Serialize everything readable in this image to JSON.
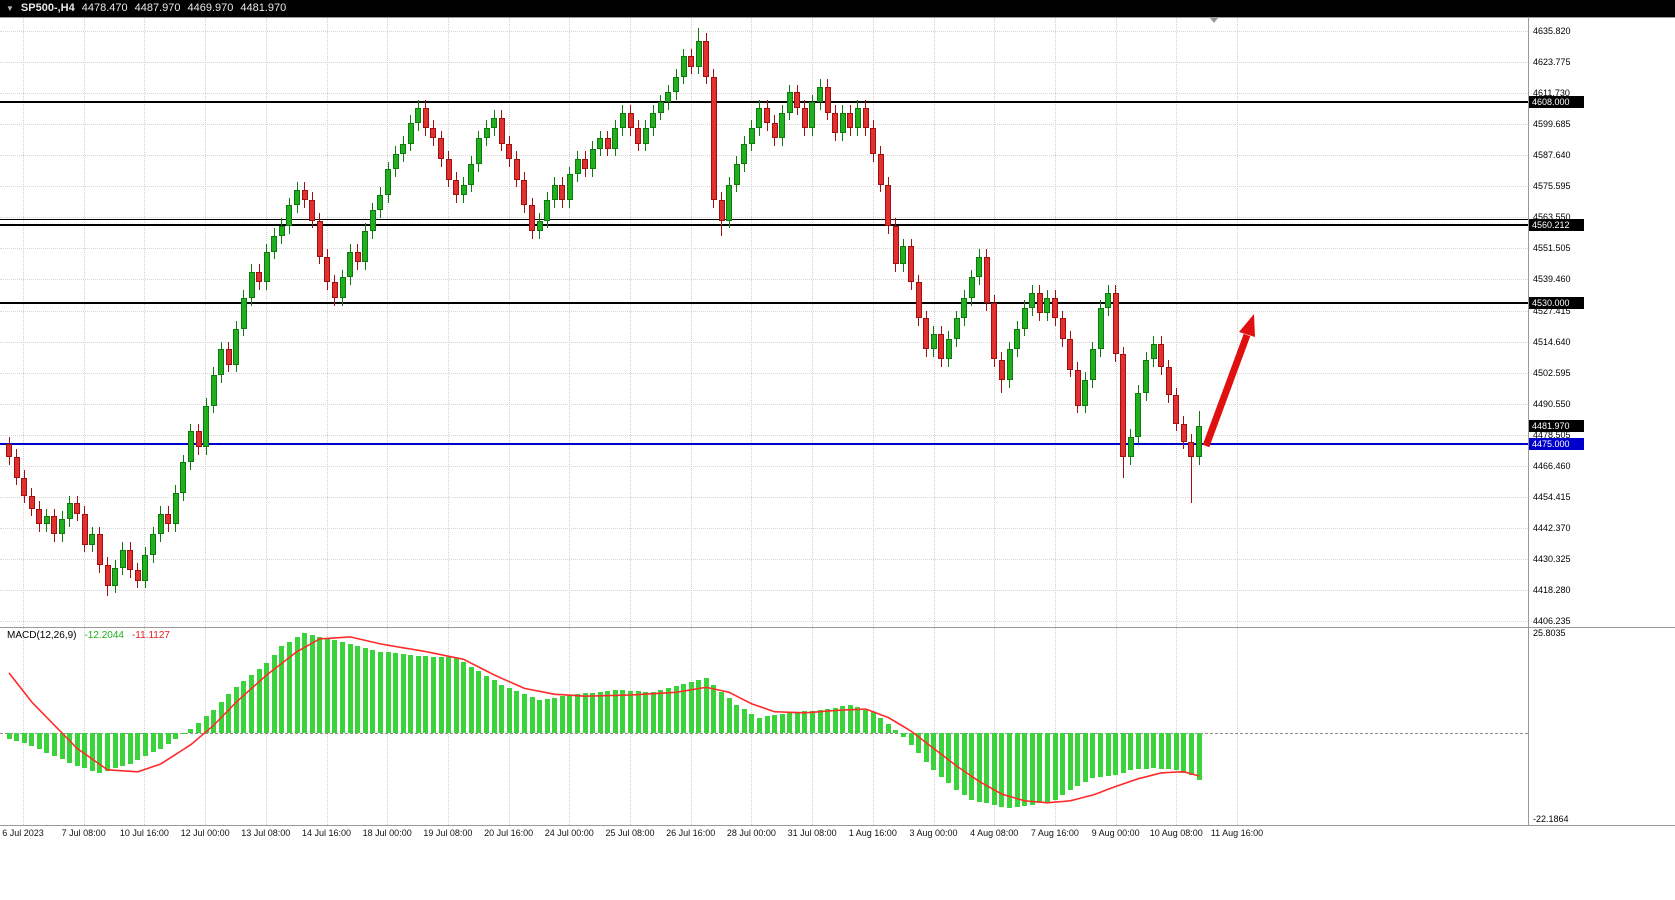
{
  "title_bar": {
    "dropdown_icon": "▼",
    "symbol_period": "SP500-,H4",
    "open": "4478.470",
    "high": "4487.970",
    "low": "4469.970",
    "close": "4481.970"
  },
  "macd_panel": {
    "label": "MACD(12,26,9)",
    "macd_value": "-12.2044",
    "signal_value": "-11.1127",
    "scale_top": "25.8035",
    "scale_bottom": "-22.1864"
  },
  "colors": {
    "up_body": "#1FAF1F",
    "up_border": "#0E7A0E",
    "down_body": "#E03030",
    "down_border": "#A01010",
    "histogram": "#3BD33B",
    "signal_line": "#FF2A2A",
    "level_line": "#000000",
    "support_line": "#0000CC",
    "arrow": "#E01010",
    "tag_bg": "#000000",
    "tag_blue_bg": "#0000CC"
  },
  "annotation": {
    "type": "up-trend-arrow",
    "color": "#E01010"
  },
  "chart_data": {
    "type": "candlestick",
    "title": "SP500-,H4",
    "symbol": "SP500-",
    "timeframe": "H4",
    "current_bar": {
      "open": 4478.47,
      "high": 4487.97,
      "low": 4469.97,
      "close": 4481.97
    },
    "ylim": [
      4404.5,
      4641.0
    ],
    "grid": true,
    "y_axis_labels": [
      "4635.820",
      "4623.775",
      "4611.730",
      "4599.685",
      "4587.640",
      "4575.595",
      "4563.550",
      "4551.505",
      "4539.460",
      "4527.415",
      "4514.640",
      "4502.595",
      "4490.550",
      "4478.505",
      "4466.460",
      "4454.415",
      "4442.370",
      "4430.325",
      "4418.280",
      "4406.235"
    ],
    "x_labels": [
      "6 Jul 2023",
      "7 Jul 08:00",
      "10 Jul 16:00",
      "12 Jul 00:00",
      "13 Jul 08:00",
      "14 Jul 16:00",
      "18 Jul 00:00",
      "19 Jul 08:00",
      "20 Jul 16:00",
      "24 Jul 00:00",
      "25 Jul 08:00",
      "26 Jul 16:00",
      "28 Jul 00:00",
      "31 Jul 08:00",
      "1 Aug 16:00",
      "3 Aug 00:00",
      "4 Aug 08:00",
      "7 Aug 16:00",
      "9 Aug 00:00",
      "10 Aug 08:00",
      "11 Aug 16:00"
    ],
    "levels": [
      {
        "label": "4608.000",
        "price": 4608.0,
        "color": "#000000",
        "thickness": 2,
        "tag": true
      },
      {
        "label": "",
        "price": 4562.5,
        "color": "#000000",
        "thickness": 1,
        "tag": false
      },
      {
        "label": "4560.212",
        "price": 4560.212,
        "color": "#000000",
        "thickness": 2,
        "tag": true
      },
      {
        "label": "4530.000",
        "price": 4530.0,
        "color": "#000000",
        "thickness": 2,
        "tag": true
      },
      {
        "label": "4475.000",
        "price": 4475.0,
        "color": "#0000CC",
        "thickness": 2,
        "tag": true
      }
    ],
    "current_price_tag": {
      "label": "4481.970",
      "price": 4481.97,
      "bg": "#000000"
    },
    "candles": [
      [
        4475,
        4478,
        4467,
        4470
      ],
      [
        4470,
        4473,
        4459,
        4462
      ],
      [
        4462,
        4465,
        4452,
        4455
      ],
      [
        4455,
        4458,
        4447,
        4450
      ],
      [
        4450,
        4453,
        4441,
        4444
      ],
      [
        4444,
        4450,
        4441,
        4447
      ],
      [
        4447,
        4450,
        4437,
        4440
      ],
      [
        4440,
        4449,
        4437,
        4446
      ],
      [
        4446,
        4455,
        4443,
        4452
      ],
      [
        4452,
        4455,
        4445,
        4448
      ],
      [
        4448,
        4451,
        4433,
        4436
      ],
      [
        4436,
        4443,
        4433,
        4440
      ],
      [
        4440,
        4443,
        4425,
        4428
      ],
      [
        4428,
        4431,
        4416,
        4420
      ],
      [
        4420,
        4430,
        4417,
        4427
      ],
      [
        4427,
        4437,
        4424,
        4434
      ],
      [
        4434,
        4437,
        4423,
        4426
      ],
      [
        4426,
        4429,
        4419,
        4422
      ],
      [
        4422,
        4435,
        4419,
        4432
      ],
      [
        4432,
        4443,
        4429,
        4440
      ],
      [
        4440,
        4451,
        4437,
        4448
      ],
      [
        4448,
        4451,
        4441,
        4444
      ],
      [
        4444,
        4459,
        4441,
        4456
      ],
      [
        4456,
        4471,
        4453,
        4468
      ],
      [
        4468,
        4483,
        4465,
        4480
      ],
      [
        4480,
        4483,
        4471,
        4474
      ],
      [
        4474,
        4493,
        4471,
        4490
      ],
      [
        4490,
        4505,
        4487,
        4502
      ],
      [
        4502,
        4515,
        4499,
        4512
      ],
      [
        4512,
        4515,
        4503,
        4506
      ],
      [
        4506,
        4523,
        4503,
        4520
      ],
      [
        4520,
        4535,
        4517,
        4532
      ],
      [
        4532,
        4545,
        4529,
        4542
      ],
      [
        4542,
        4545,
        4535,
        4538
      ],
      [
        4538,
        4553,
        4535,
        4550
      ],
      [
        4550,
        4559,
        4547,
        4556
      ],
      [
        4556,
        4563,
        4553,
        4560
      ],
      [
        4560,
        4571,
        4557,
        4568
      ],
      [
        4568,
        4577,
        4565,
        4574
      ],
      [
        4574,
        4577,
        4567,
        4570
      ],
      [
        4570,
        4573,
        4559,
        4562
      ],
      [
        4562,
        4565,
        4545,
        4548
      ],
      [
        4548,
        4551,
        4535,
        4538
      ],
      [
        4538,
        4541,
        4529,
        4532
      ],
      [
        4532,
        4543,
        4529,
        4540
      ],
      [
        4540,
        4553,
        4537,
        4550
      ],
      [
        4550,
        4553,
        4543,
        4546
      ],
      [
        4546,
        4561,
        4543,
        4558
      ],
      [
        4558,
        4569,
        4555,
        4566
      ],
      [
        4566,
        4575,
        4563,
        4572
      ],
      [
        4572,
        4585,
        4569,
        4582
      ],
      [
        4582,
        4591,
        4579,
        4588
      ],
      [
        4588,
        4595,
        4585,
        4592
      ],
      [
        4592,
        4603,
        4589,
        4600
      ],
      [
        4600,
        4609,
        4597,
        4606
      ],
      [
        4606,
        4609,
        4595,
        4598
      ],
      [
        4598,
        4601,
        4591,
        4594
      ],
      [
        4594,
        4597,
        4583,
        4586
      ],
      [
        4586,
        4589,
        4575,
        4578
      ],
      [
        4578,
        4581,
        4569,
        4572
      ],
      [
        4572,
        4579,
        4569,
        4576
      ],
      [
        4576,
        4587,
        4573,
        4584
      ],
      [
        4584,
        4597,
        4581,
        4594
      ],
      [
        4594,
        4601,
        4591,
        4598
      ],
      [
        4598,
        4605,
        4595,
        4602
      ],
      [
        4602,
        4605,
        4589,
        4592
      ],
      [
        4592,
        4595,
        4583,
        4586
      ],
      [
        4586,
        4589,
        4575,
        4578
      ],
      [
        4578,
        4581,
        4565,
        4568
      ],
      [
        4568,
        4571,
        4555,
        4558
      ],
      [
        4558,
        4565,
        4555,
        4562
      ],
      [
        4562,
        4573,
        4559,
        4570
      ],
      [
        4570,
        4579,
        4567,
        4576
      ],
      [
        4576,
        4579,
        4567,
        4570
      ],
      [
        4570,
        4583,
        4567,
        4580
      ],
      [
        4580,
        4589,
        4577,
        4586
      ],
      [
        4586,
        4589,
        4579,
        4582
      ],
      [
        4582,
        4593,
        4579,
        4590
      ],
      [
        4590,
        4597,
        4587,
        4594
      ],
      [
        4594,
        4597,
        4587,
        4590
      ],
      [
        4590,
        4601,
        4587,
        4598
      ],
      [
        4598,
        4607,
        4595,
        4604
      ],
      [
        4604,
        4607,
        4595,
        4598
      ],
      [
        4598,
        4601,
        4589,
        4592
      ],
      [
        4592,
        4601,
        4589,
        4598
      ],
      [
        4598,
        4607,
        4595,
        4604
      ],
      [
        4604,
        4611,
        4601,
        4608
      ],
      [
        4608,
        4615,
        4605,
        4612
      ],
      [
        4612,
        4621,
        4609,
        4618
      ],
      [
        4618,
        4629,
        4615,
        4626
      ],
      [
        4626,
        4629,
        4619,
        4622
      ],
      [
        4622,
        4637,
        4619,
        4632
      ],
      [
        4632,
        4635,
        4615,
        4618
      ],
      [
        4618,
        4621,
        4567,
        4570
      ],
      [
        4570,
        4573,
        4556,
        4562
      ],
      [
        4562,
        4579,
        4559,
        4576
      ],
      [
        4576,
        4587,
        4573,
        4584
      ],
      [
        4584,
        4595,
        4581,
        4592
      ],
      [
        4592,
        4601,
        4589,
        4598
      ],
      [
        4598,
        4609,
        4595,
        4606
      ],
      [
        4606,
        4609,
        4597,
        4600
      ],
      [
        4600,
        4603,
        4591,
        4594
      ],
      [
        4594,
        4607,
        4591,
        4604
      ],
      [
        4604,
        4615,
        4601,
        4612
      ],
      [
        4612,
        4615,
        4603,
        4606
      ],
      [
        4606,
        4609,
        4595,
        4598
      ],
      [
        4598,
        4611,
        4595,
        4608
      ],
      [
        4608,
        4617,
        4605,
        4614
      ],
      [
        4614,
        4617,
        4601,
        4604
      ],
      [
        4604,
        4607,
        4593,
        4596
      ],
      [
        4596,
        4607,
        4593,
        4604
      ],
      [
        4604,
        4607,
        4595,
        4598
      ],
      [
        4598,
        4609,
        4595,
        4606
      ],
      [
        4606,
        4609,
        4595,
        4598
      ],
      [
        4598,
        4601,
        4585,
        4588
      ],
      [
        4588,
        4591,
        4573,
        4576
      ],
      [
        4576,
        4579,
        4557,
        4560
      ],
      [
        4560,
        4563,
        4542,
        4545
      ],
      [
        4545,
        4555,
        4542,
        4552
      ],
      [
        4552,
        4555,
        4535,
        4538
      ],
      [
        4538,
        4541,
        4521,
        4524
      ],
      [
        4524,
        4527,
        4509,
        4512
      ],
      [
        4512,
        4521,
        4509,
        4518
      ],
      [
        4518,
        4521,
        4505,
        4508
      ],
      [
        4508,
        4519,
        4505,
        4516
      ],
      [
        4516,
        4527,
        4513,
        4524
      ],
      [
        4524,
        4535,
        4521,
        4532
      ],
      [
        4532,
        4543,
        4529,
        4540
      ],
      [
        4540,
        4551,
        4537,
        4548
      ],
      [
        4548,
        4551,
        4527,
        4530
      ],
      [
        4530,
        4533,
        4505,
        4508
      ],
      [
        4508,
        4511,
        4495,
        4500
      ],
      [
        4500,
        4515,
        4497,
        4512
      ],
      [
        4512,
        4523,
        4509,
        4520
      ],
      [
        4520,
        4531,
        4517,
        4528
      ],
      [
        4528,
        4537,
        4525,
        4534
      ],
      [
        4534,
        4537,
        4523,
        4526
      ],
      [
        4526,
        4535,
        4523,
        4532
      ],
      [
        4532,
        4535,
        4521,
        4524
      ],
      [
        4524,
        4527,
        4513,
        4516
      ],
      [
        4516,
        4519,
        4501,
        4504
      ],
      [
        4504,
        4507,
        4487,
        4490
      ],
      [
        4490,
        4503,
        4487,
        4500
      ],
      [
        4500,
        4515,
        4497,
        4512
      ],
      [
        4512,
        4531,
        4509,
        4528
      ],
      [
        4528,
        4537,
        4525,
        4534
      ],
      [
        4534,
        4537,
        4507,
        4510
      ],
      [
        4510,
        4513,
        4462,
        4470
      ],
      [
        4470,
        4481,
        4467,
        4478
      ],
      [
        4478,
        4498,
        4475,
        4495
      ],
      [
        4495,
        4511,
        4492,
        4508
      ],
      [
        4508,
        4517,
        4505,
        4514
      ],
      [
        4514,
        4517,
        4502,
        4505
      ],
      [
        4505,
        4508,
        4491,
        4494
      ],
      [
        4494,
        4497,
        4480,
        4483
      ],
      [
        4483,
        4486,
        4473,
        4476
      ],
      [
        4476,
        4479,
        4452,
        4470
      ],
      [
        4470,
        4488,
        4467,
        4481.97
      ]
    ],
    "indicator": {
      "name": "MACD(12,26,9)",
      "last_macd": -12.2044,
      "last_signal": -11.1127,
      "scale": [
        -22.1864,
        25.8035
      ],
      "histogram_keyframes": [
        [
          0,
          -1.5
        ],
        [
          2,
          -2.5
        ],
        [
          6,
          -6
        ],
        [
          9,
          -8.5
        ],
        [
          12,
          -10.3
        ],
        [
          16,
          -8
        ],
        [
          20,
          -4
        ],
        [
          24,
          1
        ],
        [
          27,
          6
        ],
        [
          30,
          12
        ],
        [
          34,
          18
        ],
        [
          36,
          22.5
        ],
        [
          39,
          25.8
        ],
        [
          44,
          23.5
        ],
        [
          49,
          21
        ],
        [
          55,
          19.8
        ],
        [
          59,
          19.4
        ],
        [
          65,
          12.4
        ],
        [
          70,
          8.5
        ],
        [
          74,
          9.8
        ],
        [
          80,
          11.1
        ],
        [
          85,
          10.6
        ],
        [
          90,
          13.2
        ],
        [
          92,
          14.2
        ],
        [
          96,
          7.2
        ],
        [
          99,
          3.9
        ],
        [
          103,
          5.4
        ],
        [
          107,
          5.9
        ],
        [
          111,
          7.2
        ],
        [
          114,
          5.4
        ],
        [
          117,
          0.8
        ],
        [
          119,
          -3.1
        ],
        [
          122,
          -9.6
        ],
        [
          125,
          -14.7
        ],
        [
          127,
          -17.3
        ],
        [
          130,
          -18.6
        ],
        [
          132,
          -19.4
        ],
        [
          135,
          -18.6
        ],
        [
          138,
          -17.3
        ],
        [
          140,
          -14.7
        ],
        [
          143,
          -11.6
        ],
        [
          146,
          -10.9
        ],
        [
          148,
          -9.6
        ],
        [
          151,
          -9.0
        ],
        [
          154,
          -9.6
        ],
        [
          156,
          -10.9
        ],
        [
          157,
          -12.2
        ]
      ],
      "signal_keyframes": [
        [
          0,
          15.5
        ],
        [
          3,
          8
        ],
        [
          6,
          2
        ],
        [
          9,
          -4
        ],
        [
          13,
          -9.5
        ],
        [
          17,
          -10
        ],
        [
          20,
          -8
        ],
        [
          24,
          -3
        ],
        [
          27,
          2
        ],
        [
          30,
          8
        ],
        [
          34,
          15
        ],
        [
          38,
          21
        ],
        [
          41,
          24.3
        ],
        [
          45,
          24.8
        ],
        [
          49,
          23
        ],
        [
          55,
          21
        ],
        [
          60,
          19
        ],
        [
          64,
          15
        ],
        [
          68,
          11.5
        ],
        [
          72,
          10
        ],
        [
          76,
          9.5
        ],
        [
          82,
          9.8
        ],
        [
          88,
          10.5
        ],
        [
          92,
          11.8
        ],
        [
          95,
          10.5
        ],
        [
          98,
          7.5
        ],
        [
          101,
          5.5
        ],
        [
          105,
          5.2
        ],
        [
          109,
          5.8
        ],
        [
          113,
          6.2
        ],
        [
          116,
          4
        ],
        [
          119,
          0.5
        ],
        [
          122,
          -4
        ],
        [
          125,
          -8.5
        ],
        [
          128,
          -12.5
        ],
        [
          131,
          -15.8
        ],
        [
          134,
          -17.5
        ],
        [
          137,
          -18
        ],
        [
          140,
          -17.5
        ],
        [
          143,
          -16
        ],
        [
          146,
          -13.8
        ],
        [
          149,
          -11.8
        ],
        [
          152,
          -10.3
        ],
        [
          155,
          -10
        ],
        [
          157,
          -11.1
        ]
      ]
    }
  }
}
